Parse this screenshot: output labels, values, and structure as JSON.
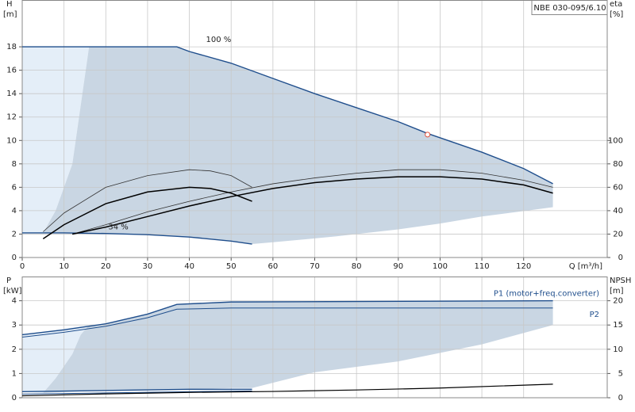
{
  "chart_data": [
    {
      "type": "line",
      "title": "NBE 030-095/6.10",
      "ylabel": [
        "H",
        "[m]"
      ],
      "y2label": [
        "eta",
        "[%]"
      ],
      "xlabel": "Q [m³/h]",
      "xlim": [
        0,
        140
      ],
      "xticks": [
        0,
        10,
        20,
        30,
        40,
        50,
        60,
        70,
        80,
        90,
        100,
        110,
        120
      ],
      "ylim": [
        0,
        22
      ],
      "yticks": [
        0,
        2,
        4,
        6,
        8,
        10,
        12,
        14,
        16,
        18
      ],
      "y2lim": [
        0,
        220
      ],
      "y2ticks": [
        0,
        20,
        40,
        60,
        80,
        100
      ],
      "grid": true,
      "show_xtick_labels": true,
      "regions": [
        {
          "color": "#e4eef8",
          "x": [
            0,
            16,
            14,
            12,
            8,
            5,
            0
          ],
          "y": [
            18,
            18,
            13,
            8,
            4,
            2.1,
            2.1
          ]
        },
        {
          "color": "#c9d6e3",
          "x": [
            16,
            37,
            40,
            50,
            60,
            70,
            80,
            90,
            97,
            110,
            120,
            127,
            127,
            110,
            100,
            90,
            75,
            60,
            55,
            50,
            40,
            30,
            20,
            10,
            5,
            8,
            12,
            14
          ],
          "y": [
            18,
            18,
            17.6,
            16.6,
            15.3,
            14,
            12.8,
            11.6,
            10.6,
            9,
            7.6,
            6.3,
            4.3,
            3.5,
            2.9,
            2.4,
            1.8,
            1.3,
            1.15,
            1.4,
            1.75,
            1.95,
            2.05,
            2.1,
            2.1,
            4,
            8,
            13
          ]
        }
      ],
      "series": [
        {
          "color": "#1f4e8c",
          "width": 1.4,
          "x": [
            0,
            37,
            40,
            50,
            60,
            70,
            80,
            90,
            97,
            110,
            120,
            127
          ],
          "values": [
            18,
            18,
            17.6,
            16.6,
            15.3,
            14,
            12.8,
            11.6,
            10.6,
            9,
            7.6,
            6.3
          ]
        },
        {
          "color": "#1f4e8c",
          "width": 1.4,
          "x": [
            0,
            10,
            20,
            30,
            40,
            50,
            55
          ],
          "values": [
            2.1,
            2.1,
            2.05,
            1.95,
            1.75,
            1.4,
            1.15
          ]
        },
        {
          "color": "#333333",
          "width": 0.8,
          "axis": "y2",
          "x": [
            12,
            20,
            30,
            40,
            50,
            60,
            70,
            80,
            90,
            100,
            110,
            120,
            127
          ],
          "values": [
            20,
            28,
            39,
            48,
            56,
            63,
            68,
            72,
            75,
            75,
            72,
            66,
            60
          ]
        },
        {
          "color": "#000000",
          "width": 1.5,
          "axis": "y2",
          "x": [
            12,
            20,
            30,
            40,
            50,
            60,
            70,
            80,
            90,
            100,
            110,
            120,
            127
          ],
          "values": [
            20,
            26,
            35,
            44,
            52,
            59,
            64,
            67,
            69,
            69,
            67,
            62,
            55
          ]
        },
        {
          "color": "#333333",
          "width": 0.8,
          "axis": "y2",
          "x": [
            5,
            10,
            20,
            30,
            40,
            45,
            50,
            55
          ],
          "values": [
            22,
            38,
            60,
            70,
            75,
            74,
            70,
            60
          ]
        },
        {
          "color": "#000000",
          "width": 1.5,
          "axis": "y2",
          "x": [
            5,
            10,
            20,
            30,
            40,
            45,
            50,
            55
          ],
          "values": [
            16,
            28,
            46,
            56,
            60,
            59,
            55,
            48
          ]
        }
      ],
      "points": [
        {
          "color": "#e0503c",
          "x": 97,
          "y": 10.5
        }
      ],
      "annotations": [
        {
          "text": "100 %",
          "x": 47,
          "y": 18.6
        },
        {
          "text": "34 %",
          "x": 23,
          "y": 2.6
        }
      ]
    },
    {
      "type": "line",
      "ylabel": [
        "P",
        "[kW]"
      ],
      "y2label": [
        "NPSH",
        "[m]"
      ],
      "xlim": [
        0,
        140
      ],
      "xticks": [
        0,
        10,
        20,
        30,
        40,
        50,
        60,
        70,
        80,
        90,
        100,
        110,
        120
      ],
      "ylim": [
        0,
        5
      ],
      "yticks": [
        0,
        1,
        2,
        3,
        4
      ],
      "y2lim": [
        0,
        25
      ],
      "y2ticks": [
        0,
        5,
        10,
        15,
        20
      ],
      "grid": true,
      "show_xtick_labels": false,
      "regions": [
        {
          "color": "#e4eef8",
          "x": [
            0,
            16,
            14,
            12,
            8,
            5,
            0
          ],
          "y": [
            2.6,
            3.0,
            2.6,
            1.8,
            0.8,
            0.2,
            0.25
          ]
        },
        {
          "color": "#c9d6e3",
          "x": [
            16,
            20,
            30,
            37,
            50,
            127,
            127,
            110,
            90,
            70,
            55,
            50,
            40,
            20,
            5,
            8,
            12,
            14
          ],
          "y": [
            3.0,
            3.05,
            3.45,
            3.85,
            3.95,
            4.0,
            3.0,
            2.2,
            1.5,
            1.05,
            0.4,
            0.4,
            0.35,
            0.3,
            0.2,
            0.8,
            1.8,
            2.6
          ]
        }
      ],
      "series": [
        {
          "name": "P1 (motor+freq.converter)",
          "color": "#1f4e8c",
          "width": 1.4,
          "x": [
            0,
            10,
            20,
            30,
            37,
            50,
            127
          ],
          "values": [
            2.6,
            2.8,
            3.05,
            3.45,
            3.85,
            3.95,
            4.0
          ]
        },
        {
          "name": "P2",
          "color": "#1f4e8c",
          "width": 1.0,
          "x": [
            0,
            10,
            20,
            30,
            37,
            50,
            127
          ],
          "values": [
            2.5,
            2.7,
            2.95,
            3.3,
            3.65,
            3.7,
            3.7
          ]
        },
        {
          "color": "#1f4e8c",
          "width": 1.4,
          "x": [
            0,
            20,
            40,
            55
          ],
          "values": [
            0.25,
            0.3,
            0.35,
            0.35
          ]
        },
        {
          "color": "#1f4e8c",
          "width": 1.0,
          "x": [
            0,
            20,
            40,
            55
          ],
          "values": [
            0.15,
            0.2,
            0.25,
            0.28
          ]
        },
        {
          "color": "#000000",
          "width": 1.2,
          "axis": "y2",
          "x": [
            0,
            20,
            40,
            60,
            80,
            100,
            127
          ],
          "values": [
            0.4,
            0.8,
            1.1,
            1.3,
            1.6,
            2.0,
            2.8
          ]
        }
      ]
    }
  ]
}
